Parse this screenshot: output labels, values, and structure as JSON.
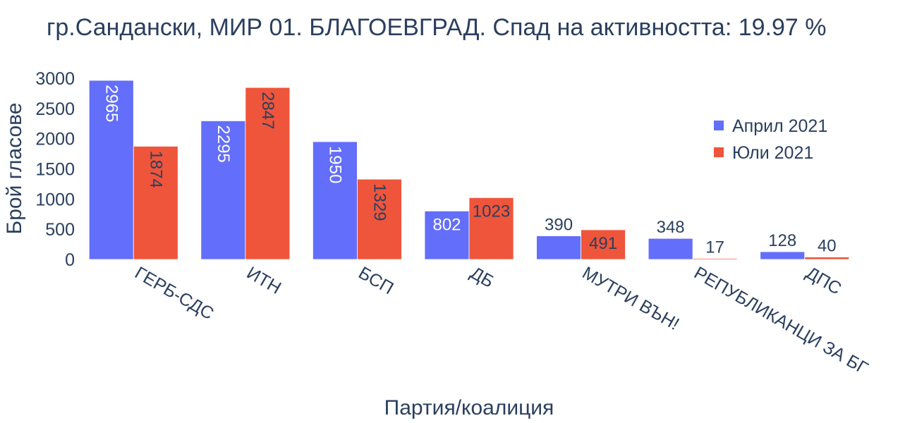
{
  "chart_data": {
    "type": "bar",
    "title": "гр.Сандански, МИР 01. БЛАГОЕВГРАД. Спад на активността: 19.97 %",
    "xlabel": "Партия/коалиция",
    "ylabel": "Брой гласове",
    "categories": [
      "ГЕРБ-СДС",
      "ИТН",
      "БСП",
      "ДБ",
      "МУТРИ ВЪН!",
      "РЕПУБЛИКАНЦИ ЗА БГ",
      "ДПС"
    ],
    "series": [
      {
        "name": "Април 2021",
        "color": "#636efa",
        "values": [
          2965,
          2295,
          1950,
          802,
          390,
          348,
          128
        ]
      },
      {
        "name": "Юли 2021",
        "color": "#ef553b",
        "values": [
          1874,
          2847,
          1329,
          1023,
          491,
          17,
          40
        ]
      }
    ],
    "ylim": [
      0,
      3000
    ],
    "yticks": [
      0,
      500,
      1000,
      1500,
      2000,
      2500,
      3000
    ],
    "grid": false,
    "legend_position": "top-right"
  }
}
